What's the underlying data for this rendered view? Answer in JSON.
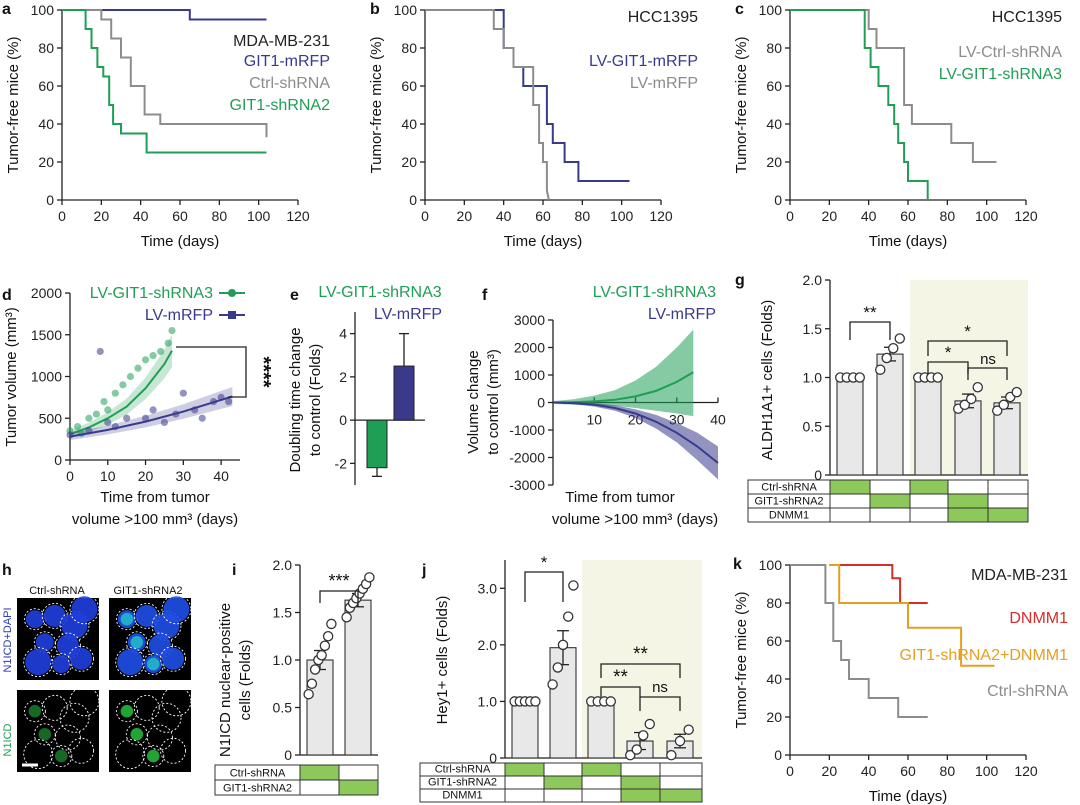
{
  "colors": {
    "navy": "#3a3a8c",
    "green": "#1f9e55",
    "gray": "#8c8c8c",
    "red": "#d62d2d",
    "orange": "#e59f1f",
    "bar": "#e8e8e8",
    "shade": "#f5f5e6"
  },
  "panels": {
    "a": {
      "label": "a",
      "title": "MDA-MB-231",
      "ylabel": "Tumor-free mice (%)",
      "xlabel": "Time (days)",
      "xticks": [
        "0",
        "20",
        "40",
        "60",
        "80",
        "100",
        "120"
      ],
      "yticks": [
        "0",
        "20",
        "40",
        "60",
        "80",
        "100"
      ],
      "legend": [
        {
          "text": "GIT1-mRFP",
          "color": "navy"
        },
        {
          "text": "Ctrl-shRNA",
          "color": "gray"
        },
        {
          "text": "GIT1-shRNA2",
          "color": "green"
        }
      ]
    },
    "b": {
      "label": "b",
      "title": "HCC1395",
      "ylabel": "Tumor-free mice (%)",
      "xlabel": "Time (days)",
      "xticks": [
        "0",
        "20",
        "40",
        "60",
        "80",
        "100",
        "120"
      ],
      "yticks": [
        "0",
        "20",
        "40",
        "60",
        "80",
        "100"
      ],
      "legend": [
        {
          "text": "LV-GIT1-mRFP",
          "color": "navy"
        },
        {
          "text": "LV-mRFP",
          "color": "gray"
        }
      ]
    },
    "c": {
      "label": "c",
      "title": "HCC1395",
      "ylabel": "Tumor-free mice (%)",
      "xlabel": "Time (days)",
      "xticks": [
        "0",
        "20",
        "40",
        "60",
        "80",
        "100",
        "120"
      ],
      "yticks": [
        "0",
        "20",
        "40",
        "60",
        "80",
        "100"
      ],
      "legend": [
        {
          "text": "LV-Ctrl-shRNA",
          "color": "gray"
        },
        {
          "text": "LV-GIT1-shRNA3",
          "color": "green"
        }
      ]
    },
    "d": {
      "label": "d",
      "ylabel": "Tumor volume (mm³)",
      "xlabel1": "Time from tumor",
      "xlabel2": "volume >100 mm³ (days)",
      "xticks": [
        "0",
        "10",
        "20",
        "30",
        "40"
      ],
      "yticks": [
        "0",
        "500",
        "1000",
        "1500",
        "2000"
      ],
      "legend": [
        {
          "text": "LV-GIT1-shRNA3",
          "color": "green"
        },
        {
          "text": "LV-mRFP",
          "color": "navy"
        }
      ],
      "sig": "****"
    },
    "e": {
      "label": "e",
      "ylabel1": "Doubling time change",
      "ylabel2": "to control (Folds)",
      "yticks": [
        "-2",
        "0",
        "2",
        "4"
      ],
      "legend": [
        {
          "text": "LV-GIT1-shRNA3",
          "color": "green"
        },
        {
          "text": "LV-mRFP",
          "color": "navy"
        }
      ]
    },
    "f": {
      "label": "f",
      "ylabel1": "Volume change",
      "ylabel2": "to control (mm³)",
      "xlabel1": "Time from tumor",
      "xlabel2": "volume >100 mm³ (days)",
      "xticks": [
        "10",
        "20",
        "30",
        "40"
      ],
      "yticks": [
        "-3000",
        "-2000",
        "-1000",
        "0",
        "1000",
        "2000",
        "3000"
      ],
      "legend": [
        {
          "text": "LV-GIT1-shRNA3",
          "color": "green"
        },
        {
          "text": "LV-mRFP",
          "color": "navy"
        }
      ]
    },
    "g": {
      "label": "g",
      "ylabel": "ALDH1A1+ cells (Folds)",
      "yticks": [
        "0",
        "0.5",
        "1.0",
        "1.5",
        "2.0"
      ],
      "sig": [
        "**",
        "*",
        "*",
        "ns"
      ],
      "table_rows": [
        "Ctrl-shRNA",
        "GIT1-shRNA2",
        "DNMM1"
      ]
    },
    "h": {
      "label": "h",
      "col1": "Ctrl-shRNA",
      "col2": "GIT1-shRNA2",
      "row1": "N1ICD+DAPI",
      "row2": "N1ICD"
    },
    "i": {
      "label": "i",
      "ylabel1": "N1ICD nuclear-positive",
      "ylabel2": "cells (Folds)",
      "yticks": [
        "0",
        "0.5",
        "1.0",
        "1.5",
        "2.0"
      ],
      "sig": "***",
      "table_rows": [
        "Ctrl-shRNA",
        "GIT1-shRNA2"
      ]
    },
    "j": {
      "label": "j",
      "ylabel": "Hey1+ cells (Folds)",
      "yticks": [
        "0",
        "1.0",
        "2.0",
        "3.0"
      ],
      "sig": [
        "*",
        "**",
        "**",
        "ns"
      ],
      "table_rows": [
        "Ctrl-shRNA",
        "GIT1-shRNA2",
        "DNMM1"
      ]
    },
    "k": {
      "label": "k",
      "title": "MDA-MB-231",
      "ylabel": "Tumor-free mice (%)",
      "xlabel": "Time (days)",
      "xticks": [
        "0",
        "20",
        "40",
        "60",
        "80",
        "100",
        "120"
      ],
      "yticks": [
        "0",
        "20",
        "40",
        "60",
        "80",
        "100"
      ],
      "legend": [
        {
          "text": "DNMM1",
          "color": "red"
        },
        {
          "text": "GIT1-shRNA2+DNMM1",
          "color": "orange"
        },
        {
          "text": "Ctrl-shRNA",
          "color": "gray"
        }
      ]
    }
  },
  "chart_data": [
    {
      "id": "a",
      "type": "line",
      "title": "MDA-MB-231",
      "xlabel": "Time (days)",
      "ylabel": "Tumor-free mice (%)",
      "xlim": [
        0,
        120
      ],
      "ylim": [
        0,
        100
      ],
      "series": [
        {
          "name": "GIT1-mRFP",
          "color": "navy",
          "x": [
            0,
            65,
            65,
            104
          ],
          "y": [
            100,
            100,
            95,
            95
          ]
        },
        {
          "name": "Ctrl-shRNA",
          "color": "gray",
          "x": [
            0,
            20,
            20,
            25,
            25,
            30,
            30,
            35,
            35,
            42,
            42,
            50,
            50,
            65,
            65,
            104,
            104
          ],
          "y": [
            100,
            100,
            95,
            95,
            85,
            85,
            75,
            75,
            60,
            60,
            45,
            45,
            40,
            40,
            40,
            40,
            33
          ]
        },
        {
          "name": "GIT1-shRNA2",
          "color": "green",
          "x": [
            0,
            12,
            12,
            15,
            15,
            18,
            18,
            21,
            21,
            24,
            24,
            26,
            26,
            30,
            30,
            43,
            43,
            104
          ],
          "y": [
            100,
            100,
            90,
            90,
            80,
            80,
            70,
            70,
            65,
            65,
            50,
            50,
            40,
            40,
            35,
            35,
            25,
            25
          ]
        }
      ]
    },
    {
      "id": "b",
      "type": "line",
      "title": "HCC1395",
      "xlabel": "Time (days)",
      "ylabel": "Tumor-free mice (%)",
      "xlim": [
        0,
        120
      ],
      "ylim": [
        0,
        100
      ],
      "series": [
        {
          "name": "LV-GIT1-mRFP",
          "color": "navy",
          "x": [
            0,
            40,
            40,
            45,
            45,
            50,
            50,
            62,
            62,
            65,
            65,
            71,
            71,
            78,
            78,
            98,
            98,
            104
          ],
          "y": [
            100,
            100,
            80,
            80,
            70,
            70,
            60,
            60,
            40,
            40,
            30,
            30,
            20,
            20,
            10,
            10,
            10,
            10
          ]
        },
        {
          "name": "LV-mRFP",
          "color": "gray",
          "x": [
            0,
            35,
            35,
            40,
            40,
            45,
            45,
            55,
            55,
            58,
            58,
            60,
            60,
            62,
            62,
            63
          ],
          "y": [
            100,
            100,
            90,
            90,
            80,
            80,
            70,
            70,
            50,
            50,
            30,
            30,
            20,
            20,
            5,
            0
          ]
        }
      ]
    },
    {
      "id": "c",
      "type": "line",
      "title": "HCC1395",
      "xlabel": "Time (days)",
      "ylabel": "Tumor-free mice (%)",
      "xlim": [
        0,
        120
      ],
      "ylim": [
        0,
        100
      ],
      "series": [
        {
          "name": "LV-Ctrl-shRNA",
          "color": "gray",
          "x": [
            0,
            40,
            40,
            44,
            44,
            58,
            58,
            62,
            62,
            82,
            82,
            93,
            93,
            105
          ],
          "y": [
            100,
            100,
            90,
            90,
            80,
            80,
            50,
            50,
            40,
            40,
            30,
            30,
            20,
            20
          ]
        },
        {
          "name": "LV-GIT1-shRNA3",
          "color": "green",
          "x": [
            0,
            38,
            38,
            41,
            41,
            45,
            45,
            50,
            50,
            53,
            53,
            55,
            55,
            58,
            58,
            60,
            60,
            70,
            70
          ],
          "y": [
            100,
            100,
            80,
            80,
            70,
            70,
            60,
            60,
            50,
            50,
            40,
            40,
            30,
            30,
            20,
            20,
            10,
            10,
            0
          ]
        }
      ]
    },
    {
      "id": "d",
      "type": "scatter",
      "xlabel": "Time from tumor volume >100 mm³ (days)",
      "ylabel": "Tumor volume (mm³)",
      "xlim": [
        0,
        45
      ],
      "ylim": [
        0,
        2000
      ],
      "series": [
        {
          "name": "LV-GIT1-shRNA3",
          "color": "green",
          "x": [
            0,
            2,
            3,
            5,
            7,
            9,
            10,
            12,
            14,
            16,
            18,
            20,
            22,
            24,
            26,
            27
          ],
          "y": [
            350,
            400,
            320,
            500,
            550,
            700,
            600,
            800,
            900,
            1000,
            1100,
            1200,
            1250,
            1300,
            1400,
            1550
          ],
          "fit": [
            [
              0,
              310
            ],
            [
              5,
              390
            ],
            [
              10,
              500
            ],
            [
              15,
              640
            ],
            [
              20,
              860
            ],
            [
              25,
              1150
            ],
            [
              27,
              1310
            ]
          ]
        },
        {
          "name": "LV-mRFP",
          "color": "navy",
          "x": [
            0,
            5,
            8,
            10,
            12,
            15,
            20,
            22,
            25,
            28,
            30,
            33,
            35,
            38,
            40,
            42
          ],
          "y": [
            300,
            350,
            1300,
            450,
            400,
            500,
            500,
            600,
            450,
            550,
            800,
            600,
            500,
            700,
            750,
            700
          ],
          "fit": [
            [
              0,
              280
            ],
            [
              10,
              360
            ],
            [
              20,
              460
            ],
            [
              30,
              580
            ],
            [
              40,
              720
            ],
            [
              43,
              760
            ]
          ]
        }
      ],
      "significance": "****"
    },
    {
      "id": "e",
      "type": "bar",
      "ylabel": "Doubling time change to control (Folds)",
      "ylim": [
        -3,
        5
      ],
      "categories": [
        "LV-GIT1-shRNA3",
        "LV-mRFP"
      ],
      "values": [
        -2.2,
        2.5
      ],
      "errors": [
        0.4,
        1.5
      ],
      "colors": [
        "green",
        "navy"
      ]
    },
    {
      "id": "f",
      "type": "area",
      "xlabel": "Time from tumor volume >100 mm³ (days)",
      "ylabel": "Volume change to control (mm³)",
      "xlim": [
        0,
        40
      ],
      "ylim": [
        -3000,
        3000
      ],
      "series": [
        {
          "name": "LV-GIT1-shRNA3",
          "color": "green",
          "x": [
            0,
            5,
            10,
            15,
            20,
            25,
            30,
            34
          ],
          "y": [
            0,
            10,
            40,
            100,
            220,
            420,
            750,
            1100
          ],
          "upper": [
            50,
            120,
            250,
            450,
            800,
            1300,
            2000,
            2650
          ],
          "lower": [
            -50,
            -80,
            -100,
            -120,
            -200,
            -300,
            -400,
            -500
          ]
        },
        {
          "name": "LV-mRFP",
          "color": "navy",
          "x": [
            0,
            5,
            10,
            15,
            20,
            25,
            30,
            35,
            40
          ],
          "y": [
            0,
            -20,
            -80,
            -200,
            -400,
            -700,
            -1100,
            -1600,
            -2200
          ],
          "upper": [
            30,
            20,
            -20,
            -100,
            -250,
            -450,
            -750,
            -1100,
            -1600
          ],
          "lower": [
            -30,
            -60,
            -150,
            -300,
            -560,
            -950,
            -1450,
            -2100,
            -2800
          ]
        }
      ]
    },
    {
      "id": "g",
      "type": "bar",
      "ylabel": "ALDH1A1+ cells (Folds)",
      "ylim": [
        0,
        2
      ],
      "values": [
        1.0,
        1.24,
        1.0,
        0.76,
        0.74
      ],
      "errors": [
        0,
        0.07,
        0,
        0.07,
        0.06
      ],
      "points": [
        [
          1,
          1,
          1,
          1
        ],
        [
          1.08,
          1.2,
          1.3,
          1.4
        ],
        [
          1,
          1,
          1,
          1
        ],
        [
          0.68,
          0.72,
          0.78,
          0.9
        ],
        [
          0.66,
          0.72,
          0.8,
          0.85
        ]
      ],
      "table": {
        "Ctrl-shRNA": [
          1,
          0,
          1,
          0,
          0
        ],
        "GIT1-shRNA2": [
          0,
          1,
          0,
          1,
          0
        ],
        "DNMM1": [
          0,
          0,
          0,
          1,
          1
        ]
      }
    },
    {
      "id": "i",
      "type": "bar",
      "ylabel": "N1ICD nuclear-positive cells (Folds)",
      "ylim": [
        0,
        2
      ],
      "values": [
        1.0,
        1.63
      ],
      "errors": [
        0.1,
        0.07
      ],
      "points": [
        [
          0.64,
          0.75,
          0.9,
          1.0,
          1.05,
          1.15,
          1.25,
          1.38
        ],
        [
          1.45,
          1.55,
          1.6,
          1.65,
          1.7,
          1.75,
          1.8,
          1.87
        ]
      ],
      "table": {
        "Ctrl-shRNA": [
          1,
          0
        ],
        "GIT1-shRNA2": [
          0,
          1
        ]
      }
    },
    {
      "id": "j",
      "type": "bar",
      "ylabel": "Hey1+ cells (Folds)",
      "ylim": [
        0,
        3.5
      ],
      "values": [
        1.0,
        1.95,
        1.0,
        0.3,
        0.3
      ],
      "errors": [
        0,
        0.3,
        0,
        0.15,
        0.12
      ],
      "points": [
        [
          1,
          1,
          1,
          1,
          1
        ],
        [
          1.3,
          1.6,
          2.0,
          2.5,
          3.05
        ],
        [
          1,
          1,
          1,
          1
        ],
        [
          0.05,
          0.15,
          0.4,
          0.6
        ],
        [
          0.05,
          0.3,
          0.5
        ]
      ],
      "table": {
        "Ctrl-shRNA": [
          1,
          0,
          1,
          0,
          0
        ],
        "GIT1-shRNA2": [
          0,
          1,
          0,
          1,
          0
        ],
        "DNMM1": [
          0,
          0,
          0,
          1,
          1
        ]
      }
    },
    {
      "id": "k",
      "type": "line",
      "title": "MDA-MB-231",
      "xlabel": "Time (days)",
      "ylabel": "Tumor-free mice (%)",
      "xlim": [
        0,
        120
      ],
      "ylim": [
        0,
        100
      ],
      "series": [
        {
          "name": "DNMM1",
          "color": "red",
          "x": [
            20,
            52,
            52,
            56,
            56,
            70
          ],
          "y": [
            100,
            100,
            93,
            93,
            80,
            80
          ]
        },
        {
          "name": "GIT1-shRNA2+DNMM1",
          "color": "orange",
          "x": [
            20,
            25,
            25,
            60,
            60,
            87,
            87,
            104
          ],
          "y": [
            100,
            100,
            80,
            80,
            67,
            67,
            47,
            47
          ]
        },
        {
          "name": "Ctrl-shRNA",
          "color": "gray",
          "x": [
            0,
            18,
            18,
            22,
            22,
            26,
            26,
            30,
            30,
            40,
            40,
            55,
            55,
            70
          ],
          "y": [
            100,
            100,
            80,
            80,
            60,
            60,
            50,
            50,
            40,
            40,
            30,
            30,
            20,
            20
          ]
        }
      ]
    }
  ]
}
